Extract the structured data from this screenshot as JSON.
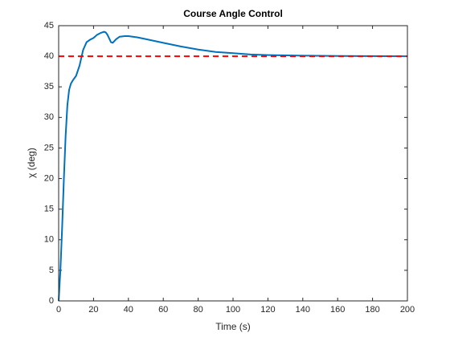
{
  "chart_data": {
    "type": "line",
    "title": "Course Angle Control",
    "x_label": "Time (s)",
    "y_label": "χ (deg)",
    "xlim": [
      0,
      200
    ],
    "xticks": [
      0,
      20,
      40,
      60,
      80,
      100,
      120,
      140,
      160,
      180,
      200
    ],
    "ylim": [
      0,
      45
    ],
    "yticks": [
      0,
      5,
      10,
      15,
      20,
      25,
      30,
      35,
      40,
      45
    ],
    "grid": false,
    "series": [
      {
        "color": "#0072bd",
        "dashed": false,
        "x": [
          0,
          1,
          2,
          3,
          4,
          5,
          6,
          7,
          8,
          10,
          12,
          14,
          16,
          18,
          20,
          22,
          24,
          26,
          27,
          28,
          30,
          31,
          33,
          35,
          38,
          40,
          45,
          50,
          60,
          70,
          80,
          90,
          100,
          110,
          120,
          140,
          160,
          200
        ],
        "values": [
          0,
          5,
          12,
          20,
          27,
          32,
          34.5,
          35.5,
          36,
          36.8,
          38.5,
          41,
          42.3,
          42.7,
          43,
          43.5,
          43.8,
          44,
          43.9,
          43.5,
          42.3,
          42.2,
          42.8,
          43.2,
          43.3,
          43.3,
          43.1,
          42.8,
          42.2,
          41.6,
          41.1,
          40.7,
          40.5,
          40.3,
          40.2,
          40.1,
          40.05,
          40
        ]
      },
      {
        "color": "#ff0000",
        "dashed": true,
        "x": [
          0,
          200
        ],
        "values": [
          40,
          40
        ]
      }
    ]
  }
}
